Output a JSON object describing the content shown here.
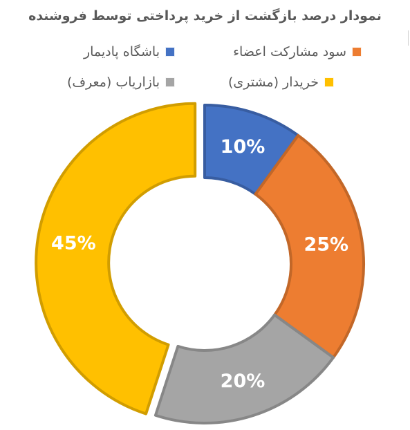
{
  "chart_data": {
    "type": "donut",
    "title": "نمودار درصد بازگشت از خرید پرداختی توسط فروشنده",
    "series": [
      {
        "name": "باشگاه پادیمار",
        "value": 10,
        "label": "10%",
        "color": "#4472C4",
        "exploded": false
      },
      {
        "name": "سود مشارکت اعضاء",
        "value": 25,
        "label": "25%",
        "color": "#ED7D31",
        "exploded": false
      },
      {
        "name": "بازاریاب (معرف)",
        "value": 20,
        "label": "20%",
        "color": "#A5A5A5",
        "exploded": false
      },
      {
        "name": "خریدار (مشتری)",
        "value": 45,
        "label": "45%",
        "color": "#FFC000",
        "exploded": true
      }
    ],
    "legend_position": "top"
  }
}
